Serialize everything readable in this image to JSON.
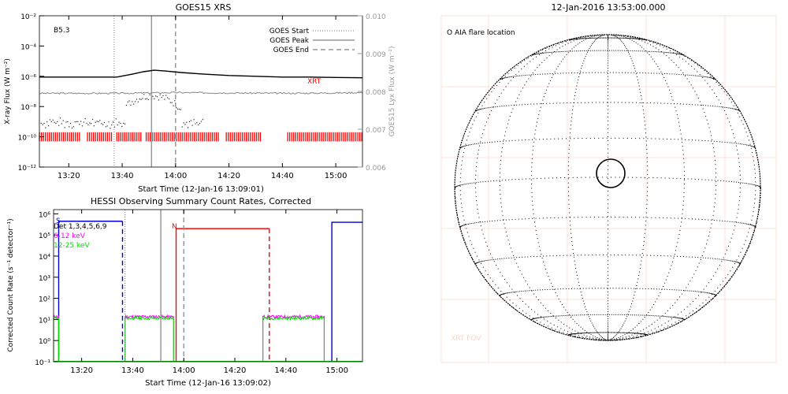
{
  "chart_data": [
    {
      "type": "line",
      "title": "GOES15 XRS",
      "xlabel": "Start Time (12-Jan-16 13:09:01)",
      "ylabel": "X-ray Flux (W m⁻²)",
      "ylabel2": "GOES15 Lyx Flux (W m⁻²)",
      "class_label": "B5.3",
      "xrt_label": "XRT",
      "x_ticks": [
        "13:20",
        "13:40",
        "14:00",
        "14:20",
        "14:40",
        "15:00"
      ],
      "x_tick_minutes": [
        20,
        40,
        60,
        80,
        100,
        120
      ],
      "xlim_minutes": [
        9,
        130
      ],
      "y_ticks": [
        "10⁻¹²",
        "10⁻¹⁰",
        "10⁻⁸",
        "10⁻⁶",
        "10⁻⁴",
        "10⁻²"
      ],
      "y_tick_exp": [
        -12,
        -10,
        -8,
        -6,
        -4,
        -2
      ],
      "ylim_log": [
        -12,
        -2
      ],
      "y2_ticks": [
        "0.006",
        "0.007",
        "0.008",
        "0.009",
        "0.010"
      ],
      "y2_values": [
        0.006,
        0.007,
        0.008,
        0.009,
        0.01
      ],
      "y2lim": [
        0.006,
        0.01
      ],
      "legend": [
        {
          "name": "GOES Start",
          "style": "dotted"
        },
        {
          "name": "GOES Peak",
          "style": "solid"
        },
        {
          "name": "GOES End",
          "style": "dashed"
        }
      ],
      "events_minutes": {
        "start": 37,
        "peak": 51,
        "end": 60
      },
      "series": [
        {
          "name": "long",
          "color": "#000000",
          "x": [
            9,
            30,
            38,
            44,
            48,
            52,
            56,
            62,
            70,
            80,
            90,
            100,
            110,
            120,
            130
          ],
          "log_y": [
            -6.05,
            -6.05,
            -6.05,
            -5.85,
            -5.7,
            -5.6,
            -5.65,
            -5.75,
            -5.85,
            -5.95,
            -6.0,
            -6.05,
            -6.05,
            -6.08,
            -6.1
          ]
        },
        {
          "name": "lyman",
          "color": "#888888",
          "x": [
            9,
            40,
            60,
            80,
            100,
            120,
            130
          ],
          "y2": [
            0.00795,
            0.00795,
            0.00797,
            0.00796,
            0.00795,
            0.00796,
            0.00797
          ]
        }
      ],
      "colors": {
        "xrt": "#ff0000",
        "event": "#999999"
      }
    },
    {
      "type": "line",
      "title": "HESSI Observing Summary Count Rates, Corrected",
      "xlabel": "Start Time (12-Jan-16 13:09:02)",
      "ylabel": "Corrected Count Rate (s⁻¹ detector⁻¹)",
      "legend": [
        {
          "name": "Det 1,3,4,5,6,9",
          "color": "#000000"
        },
        {
          "name": "6-12 keV",
          "color": "#ff00ff"
        },
        {
          "name": "12-25 keV",
          "color": "#00dd00"
        }
      ],
      "flag_s": "S",
      "flag_n": "N",
      "x_ticks": [
        "13:20",
        "13:40",
        "14:00",
        "14:20",
        "14:40",
        "15:00"
      ],
      "x_tick_minutes": [
        20,
        40,
        60,
        80,
        100,
        120
      ],
      "xlim_minutes": [
        9,
        130
      ],
      "y_ticks": [
        "10⁻¹",
        "10⁰",
        "10¹",
        "10²",
        "10³",
        "10⁴",
        "10⁵",
        "10⁶"
      ],
      "y_tick_exp": [
        -1,
        0,
        1,
        2,
        3,
        4,
        5,
        6
      ],
      "ylim_log": [
        -1,
        6.2
      ],
      "events_minutes": {
        "start": 37,
        "peak": 51,
        "end": 60
      },
      "colors": {
        "saa": "#0000cc",
        "night": "#ff0000",
        "magenta": "#ff00ff",
        "green": "#00dd00"
      }
    },
    {
      "type": "other",
      "title": "12-Jan-2016 13:53:00.000",
      "legend_label": "O AIA flare location",
      "fov_label": "XRT FOV"
    }
  ]
}
